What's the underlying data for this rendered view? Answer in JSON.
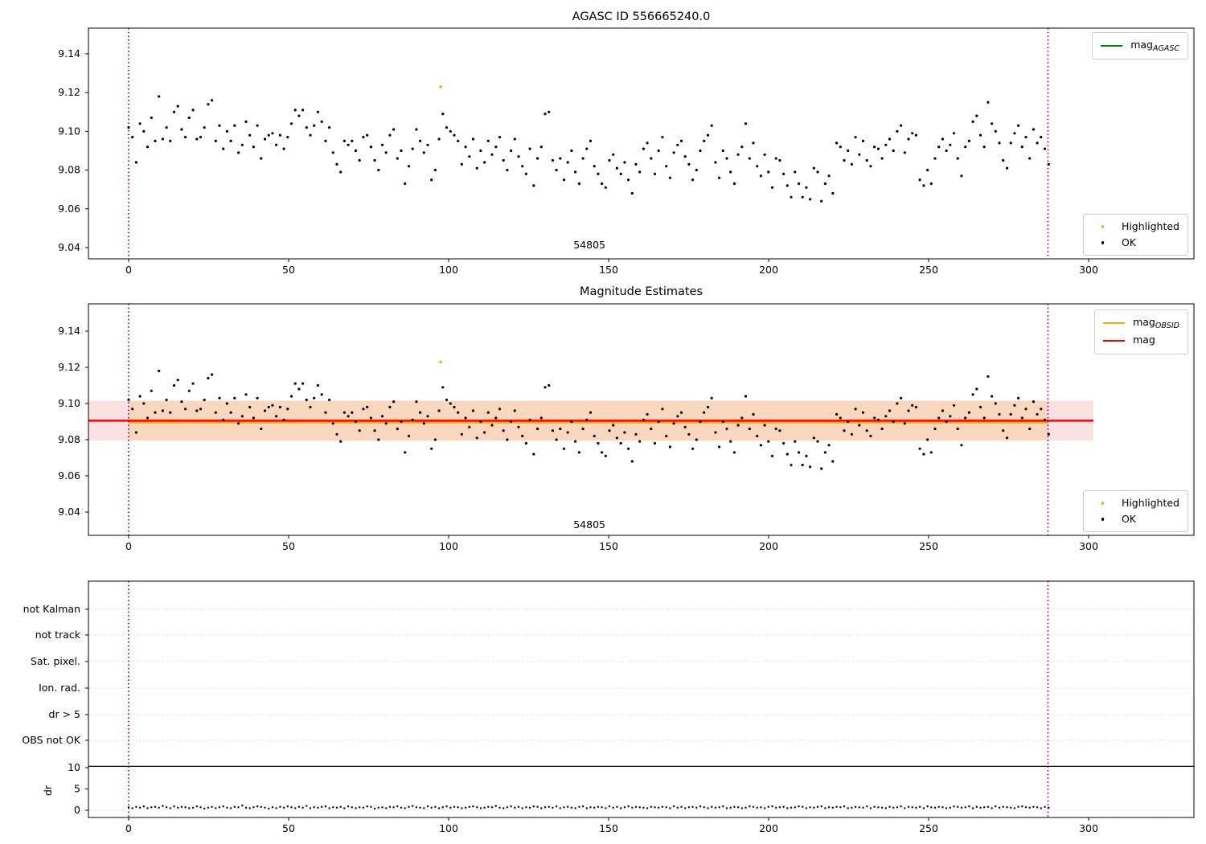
{
  "figure": {
    "annotation_obsid": "54805",
    "plots": [
      {
        "title": "AGASC ID 556665240.0",
        "y_tick_labels": [
          "9.14",
          "9.12",
          "9.10",
          "9.08",
          "9.06",
          "9.04"
        ],
        "x_tick_labels": [
          "0",
          "50",
          "100",
          "150",
          "200",
          "250",
          "300"
        ]
      },
      {
        "title": "Magnitude Estimates",
        "y_tick_labels": [
          "9.14",
          "9.12",
          "9.10",
          "9.08",
          "9.06",
          "9.04"
        ],
        "x_tick_labels": [
          "0",
          "50",
          "100",
          "150",
          "200",
          "250",
          "300"
        ]
      },
      {
        "title": "",
        "categories": [
          "not Kalman",
          "not track",
          "Sat. pixel.",
          "Ion. rad.",
          "dr > 5",
          "OBS not OK"
        ],
        "dr_tick_labels": [
          "10",
          "5",
          "0"
        ],
        "ylabel": "dr",
        "x_tick_labels": [
          "0",
          "50",
          "100",
          "150",
          "200",
          "250",
          "300"
        ]
      }
    ],
    "legends": {
      "agasc": {
        "main": "mag",
        "sub": "AGASC"
      },
      "obsid": {
        "main": "mag",
        "sub": "OBSID"
      },
      "mag": {
        "main": "mag",
        "sub": ""
      },
      "highlighted": "Highlighted",
      "ok": "OK"
    },
    "colors": {
      "agasc_line": "#008000",
      "obsid_line": "#FFA500",
      "mag_line": "#FF0000",
      "highlighted": "#FFA500",
      "ok": "#000000",
      "vline": "#8B008B",
      "band_outer": "#FCE1E2",
      "band_inner": "#F8D7BE",
      "grid": "#cccccc"
    }
  },
  "chart_data": {
    "plots": [
      {
        "type": "scatter",
        "title": "AGASC ID 556665240.0",
        "xlim": [
          -13,
          333
        ],
        "ylim": [
          9.033,
          9.153
        ],
        "x_ticks": [
          0,
          50,
          100,
          150,
          200,
          250,
          300
        ],
        "y_ticks": [
          9.14,
          9.12,
          9.1,
          9.08,
          9.06,
          9.04
        ],
        "vlines": [
          0,
          287.3
        ],
        "annotation": {
          "text": "54805",
          "x": 144
        },
        "legend": [
          "mag_AGASC",
          "Highlighted",
          "OK"
        ],
        "series_ref": "mag_ok",
        "highlighted_ref": "highlighted"
      },
      {
        "type": "scatter",
        "title": "Magnitude Estimates",
        "xlim": [
          -13,
          333
        ],
        "ylim": [
          9.038,
          9.155
        ],
        "x_ticks": [
          0,
          50,
          100,
          150,
          200,
          250,
          300
        ],
        "y_ticks": [
          9.14,
          9.12,
          9.1,
          9.08,
          9.06,
          9.04
        ],
        "vlines": [
          0,
          287.3
        ],
        "mag_line": 9.0905,
        "obsid_line": 9.0895,
        "band": [
          9.0795,
          9.1015
        ],
        "band_x_units": [
          0,
          287.3
        ],
        "annotation": {
          "text": "54805",
          "x": 144
        },
        "legend": [
          "mag_OBSID",
          "mag",
          "Highlighted",
          "OK"
        ],
        "series_ref": "mag_ok",
        "highlighted_ref": "highlighted"
      },
      {
        "type": "scatter",
        "title": "quality flags and dr",
        "categories": [
          "not Kalman",
          "not track",
          "Sat. pixel.",
          "Ion. rad.",
          "dr > 5",
          "OBS not OK"
        ],
        "ylabel": "dr",
        "dr_ticks": [
          10,
          5,
          0
        ],
        "threshold": 10.3,
        "vlines": [
          0,
          287.3
        ],
        "x_ticks": [
          0,
          50,
          100,
          150,
          200,
          250,
          300
        ],
        "series_ref": "dr"
      }
    ],
    "series": {
      "highlighted": {
        "x": 97.5,
        "y": 9.123
      },
      "mag_ok": {
        "x_start": 0,
        "x_end": 287.5,
        "values": [
          9.102,
          9.097,
          9.084,
          9.104,
          9.1,
          9.092,
          9.107,
          9.095,
          9.118,
          9.096,
          9.102,
          9.095,
          9.11,
          9.113,
          9.101,
          9.097,
          9.107,
          9.111,
          9.096,
          9.097,
          9.102,
          9.114,
          9.116,
          9.095,
          9.103,
          9.091,
          9.1,
          9.095,
          9.103,
          9.089,
          9.093,
          9.105,
          9.098,
          9.092,
          9.103,
          9.086,
          9.096,
          9.098,
          9.099,
          9.093,
          9.098,
          9.091,
          9.097,
          9.104,
          9.111,
          9.108,
          9.111,
          9.102,
          9.098,
          9.103,
          9.11,
          9.105,
          9.095,
          9.102,
          9.089,
          9.083,
          9.079,
          9.095,
          9.093,
          9.095,
          9.09,
          9.085,
          9.097,
          9.098,
          9.092,
          9.085,
          9.08,
          9.093,
          9.089,
          9.098,
          9.101,
          9.086,
          9.09,
          9.073,
          9.082,
          9.091,
          9.101,
          9.095,
          9.089,
          9.093,
          9.075,
          9.08,
          9.096,
          9.109,
          9.102,
          9.1,
          9.098,
          9.095,
          9.083,
          9.092,
          9.087,
          9.096,
          9.081,
          9.09,
          9.084,
          9.095,
          9.088,
          9.092,
          9.097,
          9.085,
          9.08,
          9.09,
          9.096,
          9.087,
          9.082,
          9.078,
          9.091,
          9.072,
          9.086,
          9.092,
          9.109,
          9.11,
          9.085,
          9.08,
          9.086,
          9.075,
          9.084,
          9.09,
          9.079,
          9.073,
          9.086,
          9.091,
          9.095,
          9.082,
          9.078,
          9.073,
          9.071,
          9.085,
          9.088,
          9.081,
          9.078,
          9.084,
          9.075,
          9.068,
          9.083,
          9.079,
          9.091,
          9.094,
          9.086,
          9.078,
          9.09,
          9.097,
          9.082,
          9.076,
          9.089,
          9.093,
          9.095,
          9.087,
          9.083,
          9.075,
          9.08,
          9.09,
          9.095,
          9.098,
          9.103,
          9.084,
          9.076,
          9.09,
          9.086,
          9.079,
          9.073,
          9.088,
          9.092,
          9.104,
          9.086,
          9.094,
          9.082,
          9.077,
          9.088,
          9.079,
          9.071,
          9.086,
          9.085,
          9.078,
          9.072,
          9.066,
          9.079,
          9.073,
          9.066,
          9.071,
          9.065,
          9.081,
          9.079,
          9.064,
          9.073,
          9.077,
          9.068,
          9.094,
          9.092,
          9.085,
          9.09,
          9.083,
          9.097,
          9.088,
          9.095,
          9.085,
          9.082,
          9.092,
          9.091,
          9.086,
          9.093,
          9.096,
          9.09,
          9.1,
          9.103,
          9.089,
          9.096,
          9.099,
          9.098,
          9.075,
          9.072,
          9.08,
          9.073,
          9.086,
          9.092,
          9.096,
          9.09,
          9.093,
          9.099,
          9.086,
          9.077,
          9.092,
          9.095,
          9.105,
          9.108,
          9.098,
          9.092,
          9.115,
          9.104,
          9.1,
          9.094,
          9.085,
          9.081,
          9.094,
          9.099,
          9.103,
          9.092,
          9.097,
          9.086,
          9.101,
          9.094,
          9.097,
          9.091,
          9.083
        ]
      },
      "dr": {
        "x_start": 0,
        "x_end": 287.5,
        "values": [
          0.7,
          0.5,
          0.8,
          0.6,
          0.9,
          0.5,
          0.7,
          0.8,
          0.6,
          1.0,
          0.7,
          0.5,
          0.9,
          0.6,
          0.8,
          0.7,
          0.5,
          0.6,
          0.9,
          0.7,
          0.4,
          0.6,
          0.8,
          0.5,
          0.7,
          0.9,
          0.6,
          0.5,
          0.8,
          0.7,
          1.1,
          0.6,
          0.5,
          0.7,
          0.9,
          0.8,
          0.6,
          0.4,
          0.7,
          0.5,
          0.8,
          0.6,
          0.9,
          0.7,
          0.5,
          0.8,
          0.6,
          1.0,
          0.5,
          0.7,
          0.6,
          0.8,
          0.9,
          0.5,
          0.7,
          0.6,
          0.8,
          0.5,
          0.9,
          0.7,
          0.5,
          0.7,
          0.6,
          0.9,
          0.8,
          0.4,
          0.6,
          0.7,
          0.5,
          0.8,
          0.7,
          0.9,
          0.6,
          0.5,
          0.8,
          1.0,
          0.7,
          0.6,
          0.5,
          0.9,
          0.6,
          0.8,
          0.5,
          0.7,
          0.9,
          0.6,
          0.8,
          0.7,
          0.5,
          0.6,
          0.8,
          0.9,
          0.7,
          0.5,
          0.6,
          0.8,
          0.7,
          1.0,
          0.6,
          0.5,
          0.7,
          0.9,
          0.6,
          0.8,
          0.5,
          0.7,
          0.6,
          0.9,
          0.8,
          0.5,
          0.7,
          0.8,
          0.6,
          0.9,
          0.5,
          0.7,
          0.8,
          0.6,
          0.5,
          0.8,
          0.9,
          0.5,
          0.7,
          0.6,
          0.8,
          0.7,
          0.5,
          0.9,
          0.6,
          0.8,
          0.5,
          0.7,
          0.9,
          0.6,
          0.8,
          0.7,
          0.6,
          0.5,
          0.8,
          0.7,
          0.6,
          0.8,
          0.7,
          0.5,
          0.9,
          0.6,
          0.8,
          0.5,
          0.7,
          0.8,
          0.6,
          0.9,
          0.7,
          0.5,
          0.8,
          0.6,
          0.7,
          0.9,
          0.5,
          0.6,
          0.8,
          0.7,
          0.5,
          0.6,
          0.9,
          0.8,
          0.6,
          0.7,
          0.5,
          0.8,
          0.9,
          0.6,
          0.7,
          0.8,
          0.5,
          0.6,
          0.7,
          0.9,
          0.8,
          0.5,
          0.7,
          0.6,
          0.8,
          0.9,
          0.5,
          0.7,
          0.6,
          0.8,
          0.7,
          0.9,
          0.5,
          0.6,
          0.8,
          0.7,
          0.6,
          0.9,
          0.5,
          0.8,
          0.7,
          0.6,
          0.5,
          0.8,
          0.6,
          0.7,
          0.9,
          0.5,
          0.8,
          0.7,
          0.6,
          0.8,
          0.5,
          0.9,
          0.7,
          0.6,
          0.8,
          0.7,
          0.5,
          0.6,
          0.9,
          0.8,
          0.6,
          0.7,
          0.9,
          0.5,
          0.8,
          0.6,
          0.7,
          0.8,
          0.5,
          0.9,
          0.6,
          0.8,
          0.7,
          0.6,
          0.5,
          0.8,
          0.9,
          0.7,
          0.6,
          0.8,
          0.7,
          0.5,
          0.8,
          0.6
        ]
      }
    }
  }
}
